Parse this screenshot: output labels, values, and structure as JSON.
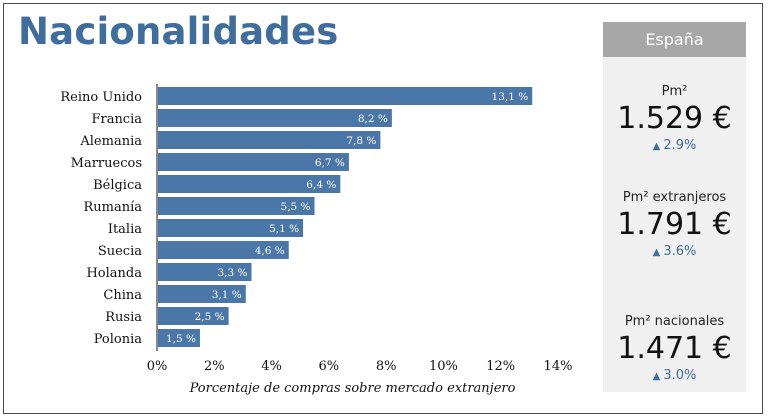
{
  "title": "Nacionalidades",
  "chart_data": {
    "type": "bar",
    "orientation": "horizontal",
    "categories": [
      "Reino Unido",
      "Francia",
      "Alemania",
      "Marruecos",
      "Bélgica",
      "Rumanía",
      "Italia",
      "Suecia",
      "Holanda",
      "China",
      "Rusia",
      "Polonia"
    ],
    "values": [
      13.1,
      8.2,
      7.8,
      6.7,
      6.4,
      5.5,
      5.1,
      4.6,
      3.3,
      3.1,
      2.5,
      1.5
    ],
    "value_labels": [
      "13,1 %",
      "8,2 %",
      "7,8 %",
      "6,7 %",
      "6,4 %",
      "5,5 %",
      "5,1 %",
      "4,6 %",
      "3,3 %",
      "3,1 %",
      "2,5 %",
      "1,5 %"
    ],
    "xlabel": "Porcentaje de compras sobre mercado extranjero",
    "xlim": [
      0,
      14
    ],
    "xticks": [
      "0%",
      "2%",
      "4%",
      "6%",
      "8%",
      "10%",
      "12%",
      "14%"
    ],
    "grid": false,
    "bar_color": "#4a77a8"
  },
  "panel": {
    "header": "España",
    "stats": [
      {
        "label": "Pm²",
        "value": "1.529 €",
        "change": "2.9%",
        "direction": "up"
      },
      {
        "label": "Pm² extranjeros",
        "value": "1.791 €",
        "change": "3.6%",
        "direction": "up"
      },
      {
        "label": "Pm² nacionales",
        "value": "1.471 €",
        "change": "3.0%",
        "direction": "up"
      }
    ]
  },
  "colors": {
    "accent": "#3f6e9e",
    "header_bg": "#a7a7a7",
    "panel_bg": "#f0f0f0"
  }
}
